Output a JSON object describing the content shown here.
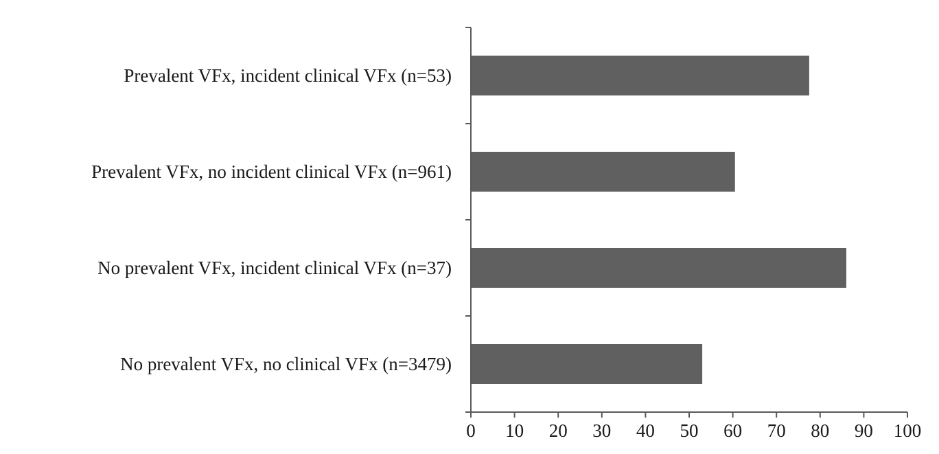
{
  "chart_data": {
    "type": "bar",
    "orientation": "horizontal",
    "categories": [
      "Prevalent VFx, incident clinical VFx (n=53)",
      "Prevalent VFx, no incident clinical VFx (n=961)",
      "No prevalent VFx, incident clinical VFx (n=37)",
      "No prevalent VFx, no clinical VFx (n=3479)"
    ],
    "values": [
      77.5,
      60.5,
      86,
      53
    ],
    "xlim": [
      0,
      100
    ],
    "xticks": [
      "0",
      "10",
      "20",
      "30",
      "40",
      "50",
      "60",
      "70",
      "80",
      "90",
      "100"
    ],
    "title": "",
    "xlabel": "",
    "ylabel": "",
    "grid": false,
    "legend": "none",
    "bar_color": "#606060",
    "axis_color": "#595959"
  }
}
